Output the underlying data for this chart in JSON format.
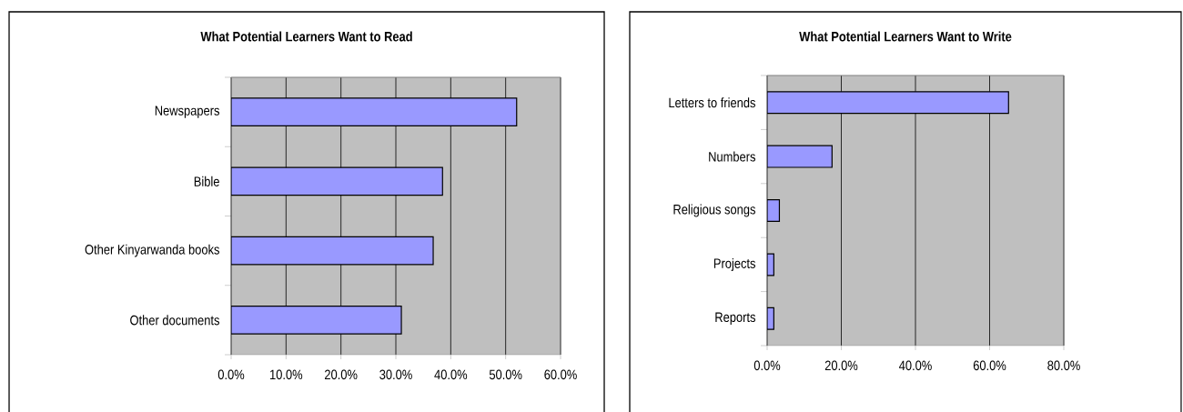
{
  "chart_data": [
    {
      "type": "bar",
      "orientation": "horizontal",
      "title": "What Potential Learners Want to Read",
      "categories": [
        "Newspapers",
        "Bible",
        "Other Kinyarwanda books",
        "Other documents"
      ],
      "values": [
        52.0,
        38.5,
        36.8,
        31.0
      ],
      "color": "#9999ff",
      "xlim": [
        0,
        60
      ],
      "xticks": [
        {
          "value": 0,
          "label": "0.0%"
        },
        {
          "value": 10,
          "label": "10.0%"
        },
        {
          "value": 20,
          "label": "20.0%"
        },
        {
          "value": 30,
          "label": "30.0%"
        },
        {
          "value": 40,
          "label": "40.0%"
        },
        {
          "value": 50,
          "label": "50.0%"
        },
        {
          "value": 60,
          "label": "60.0%"
        }
      ],
      "grid": "x"
    },
    {
      "type": "bar",
      "orientation": "horizontal",
      "title": "What Potential Learners Want to Write",
      "categories": [
        "Letters to friends",
        "Numbers",
        "Religious songs",
        "Projects",
        "Reports"
      ],
      "values": [
        65.1,
        17.5,
        3.3,
        1.8,
        1.8
      ],
      "color": "#9999ff",
      "xlim": [
        0,
        80
      ],
      "xticks": [
        {
          "value": 0,
          "label": "0.0%"
        },
        {
          "value": 20,
          "label": "20.0%"
        },
        {
          "value": 40,
          "label": "40.0%"
        },
        {
          "value": 60,
          "label": "60.0%"
        },
        {
          "value": 80,
          "label": "80.0%"
        }
      ],
      "grid": "x"
    }
  ]
}
